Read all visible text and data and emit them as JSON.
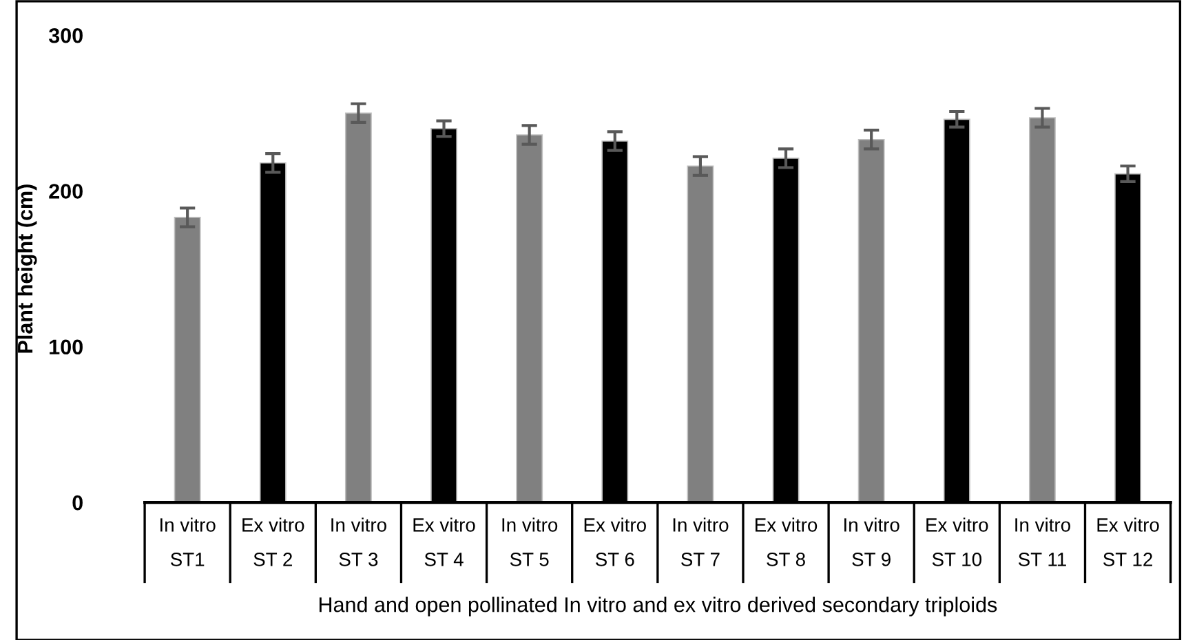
{
  "chart_data": {
    "type": "bar",
    "xlabel": "Hand and open pollinated In vitro and ex vitro derived secondary triploids",
    "ylabel": "Plant height (cm)",
    "categories": [
      "In vitro\nST1",
      "Ex vitro\nST 2",
      "In vitro\nST 3",
      "Ex vitro\nST 4",
      "In vitro\nST 5",
      "Ex vitro\nST 6",
      "In vitro\nST 7",
      "Ex vitro\nST 8",
      "In vitro\nST 9",
      "Ex vitro\nST 10",
      "In vitro\nST 11",
      "Ex vitro\nST 12"
    ],
    "values": [
      183,
      218,
      250,
      240,
      236,
      232,
      216,
      221,
      233,
      246,
      247,
      211
    ],
    "errors": [
      6,
      6,
      6,
      5,
      6,
      6,
      6,
      6,
      6,
      5,
      6,
      5
    ],
    "colors": [
      "#808080",
      "#000000",
      "#808080",
      "#000000",
      "#808080",
      "#000000",
      "#808080",
      "#000000",
      "#808080",
      "#000000",
      "#808080",
      "#000000"
    ],
    "ylim": [
      0,
      300
    ],
    "yticks": [
      0,
      100,
      200,
      300
    ],
    "grid": false,
    "legend": false
  }
}
